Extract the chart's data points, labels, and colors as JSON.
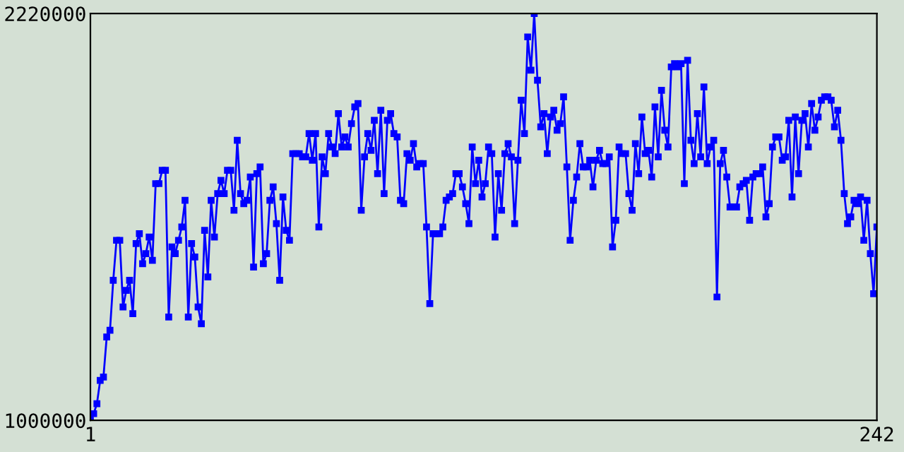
{
  "chart_data": {
    "type": "line",
    "x": [
      1,
      2,
      3,
      4,
      5,
      6,
      7,
      8,
      9,
      10,
      11,
      12,
      13,
      14,
      15,
      16,
      17,
      18,
      19,
      20,
      21,
      22,
      23,
      24,
      25,
      26,
      27,
      28,
      29,
      30,
      31,
      32,
      33,
      34,
      35,
      36,
      37,
      38,
      39,
      40,
      41,
      42,
      43,
      44,
      45,
      46,
      47,
      48,
      49,
      50,
      51,
      52,
      53,
      54,
      55,
      56,
      57,
      58,
      59,
      60,
      61,
      62,
      63,
      64,
      65,
      66,
      67,
      68,
      69,
      70,
      71,
      72,
      73,
      74,
      75,
      76,
      77,
      78,
      79,
      80,
      81,
      82,
      83,
      84,
      85,
      86,
      87,
      88,
      89,
      90,
      91,
      92,
      93,
      94,
      95,
      96,
      97,
      98,
      99,
      100,
      101,
      102,
      103,
      104,
      105,
      106,
      107,
      108,
      109,
      110,
      111,
      112,
      113,
      114,
      115,
      116,
      117,
      118,
      119,
      120,
      121,
      122,
      123,
      124,
      125,
      126,
      127,
      128,
      129,
      130,
      131,
      132,
      133,
      134,
      135,
      136,
      137,
      138,
      139,
      140,
      141,
      142,
      143,
      144,
      145,
      146,
      147,
      148,
      149,
      150,
      151,
      152,
      153,
      154,
      155,
      156,
      157,
      158,
      159,
      160,
      161,
      162,
      163,
      164,
      165,
      166,
      167,
      168,
      169,
      170,
      171,
      172,
      173,
      174,
      175,
      176,
      177,
      178,
      179,
      180,
      181,
      182,
      183,
      184,
      185,
      186,
      187,
      188,
      189,
      190,
      191,
      192,
      193,
      194,
      195,
      196,
      197,
      198,
      199,
      200,
      201,
      202,
      203,
      204,
      205,
      206,
      207,
      208,
      209,
      210,
      211,
      212,
      213,
      214,
      215,
      216,
      217,
      218,
      219,
      220,
      221,
      222,
      223,
      224,
      225,
      226,
      227,
      228,
      229,
      230,
      231,
      232,
      233,
      234,
      235,
      236,
      237,
      238,
      239,
      240,
      241,
      242
    ],
    "values": [
      1000000,
      1020000,
      1050000,
      1120000,
      1130000,
      1250000,
      1270000,
      1420000,
      1540000,
      1540000,
      1340000,
      1390000,
      1420000,
      1320000,
      1530000,
      1560000,
      1470000,
      1500000,
      1550000,
      1480000,
      1710000,
      1710000,
      1750000,
      1750000,
      1310000,
      1520000,
      1500000,
      1540000,
      1580000,
      1660000,
      1310000,
      1530000,
      1490000,
      1340000,
      1290000,
      1570000,
      1430000,
      1660000,
      1550000,
      1680000,
      1720000,
      1680000,
      1750000,
      1750000,
      1630000,
      1840000,
      1680000,
      1650000,
      1660000,
      1730000,
      1460000,
      1740000,
      1760000,
      1470000,
      1500000,
      1660000,
      1700000,
      1590000,
      1420000,
      1670000,
      1570000,
      1540000,
      1800000,
      1800000,
      1800000,
      1790000,
      1790000,
      1860000,
      1780000,
      1860000,
      1580000,
      1790000,
      1740000,
      1860000,
      1820000,
      1800000,
      1920000,
      1820000,
      1850000,
      1820000,
      1890000,
      1940000,
      1950000,
      1630000,
      1790000,
      1860000,
      1810000,
      1900000,
      1740000,
      1930000,
      1680000,
      1900000,
      1920000,
      1860000,
      1850000,
      1660000,
      1650000,
      1800000,
      1780000,
      1830000,
      1760000,
      1770000,
      1770000,
      1580000,
      1350000,
      1560000,
      1560000,
      1560000,
      1580000,
      1660000,
      1670000,
      1680000,
      1740000,
      1740000,
      1700000,
      1650000,
      1590000,
      1820000,
      1710000,
      1780000,
      1670000,
      1710000,
      1820000,
      1800000,
      1550000,
      1740000,
      1630000,
      1800000,
      1830000,
      1790000,
      1590000,
      1780000,
      1960000,
      1860000,
      2150000,
      2050000,
      2220000,
      2020000,
      1880000,
      1920000,
      1800000,
      1910000,
      1930000,
      1870000,
      1890000,
      1970000,
      1760000,
      1540000,
      1660000,
      1730000,
      1830000,
      1760000,
      1760000,
      1780000,
      1700000,
      1780000,
      1810000,
      1770000,
      1770000,
      1790000,
      1520000,
      1600000,
      1820000,
      1800000,
      1800000,
      1680000,
      1630000,
      1830000,
      1740000,
      1910000,
      1800000,
      1810000,
      1730000,
      1940000,
      1790000,
      1990000,
      1870000,
      1820000,
      2060000,
      2070000,
      2060000,
      2070000,
      1710000,
      2080000,
      1840000,
      1770000,
      1920000,
      1790000,
      2000000,
      1770000,
      1820000,
      1840000,
      1370000,
      1770000,
      1810000,
      1730000,
      1640000,
      1640000,
      1640000,
      1700000,
      1710000,
      1720000,
      1600000,
      1730000,
      1740000,
      1740000,
      1760000,
      1610000,
      1650000,
      1820000,
      1850000,
      1850000,
      1780000,
      1790000,
      1900000,
      1670000,
      1910000,
      1740000,
      1900000,
      1920000,
      1820000,
      1950000,
      1870000,
      1910000,
      1960000,
      1970000,
      1970000,
      1960000,
      1880000,
      1930000,
      1840000,
      1680000,
      1590000,
      1610000,
      1660000,
      1650000,
      1670000,
      1540000,
      1660000,
      1500000,
      1380000,
      1580000
    ],
    "color": "#0000ff",
    "marker": "square",
    "line_style": "solid",
    "xlim": [
      1,
      242
    ],
    "ylim": [
      1000000,
      2220000
    ],
    "xticks": [
      1,
      242
    ],
    "yticks": [
      1000000,
      2220000
    ],
    "grid": false
  }
}
